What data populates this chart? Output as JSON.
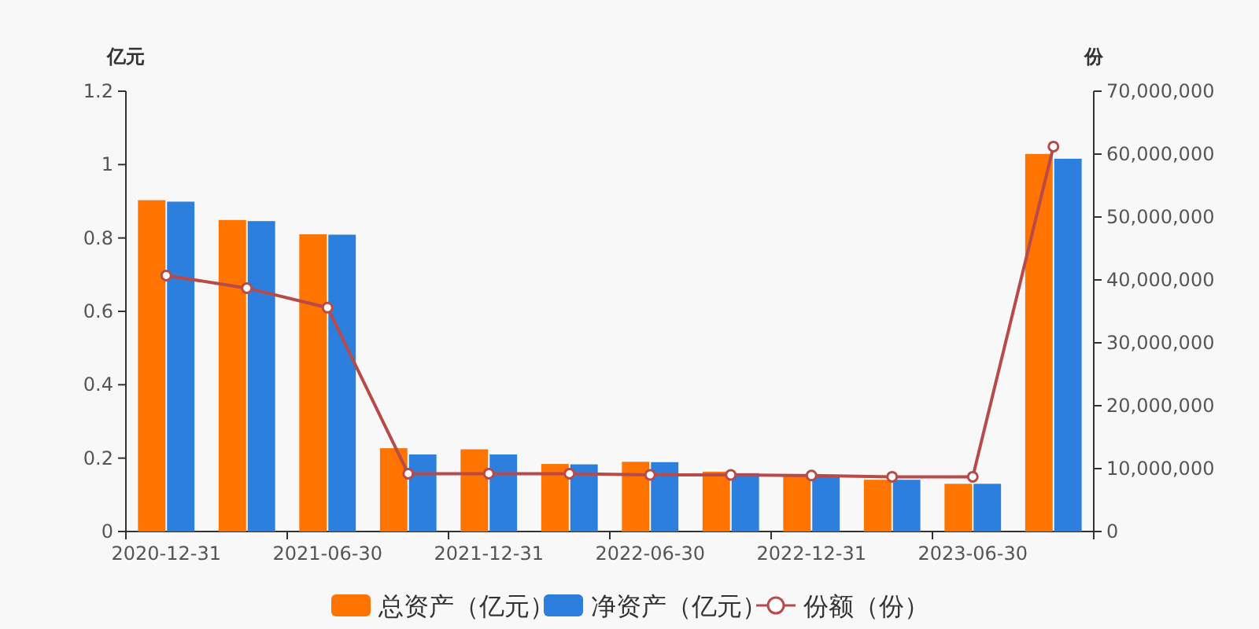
{
  "chart_data": {
    "type": "bar",
    "ylabel": "亿元",
    "y2label": "份",
    "categories": [
      "2020-12-31",
      null,
      "2021-06-30",
      null,
      "2021-12-31",
      null,
      "2022-06-30",
      null,
      "2022-12-31",
      null,
      "2023-06-30",
      null
    ],
    "series": [
      {
        "name": "总资产（亿元）",
        "color": "#ff7300",
        "values": [
          0.903,
          0.849,
          0.81,
          0.227,
          0.224,
          0.184,
          0.19,
          0.163,
          0.156,
          0.141,
          0.13,
          1.029
        ]
      },
      {
        "name": "净资产（亿元）",
        "color": "#2d7fdd",
        "values": [
          0.899,
          0.846,
          0.809,
          0.21,
          0.21,
          0.183,
          0.189,
          0.159,
          0.153,
          0.141,
          0.13,
          1.016
        ]
      },
      {
        "name": "份额（份）",
        "type": "line",
        "axis": "y2",
        "color": "#b84a4a",
        "marker": "circle",
        "values": [
          40700000,
          38700000,
          35600000,
          9200000,
          9200000,
          9200000,
          9000000,
          9000000,
          8900000,
          8700000,
          8700000,
          61200000
        ]
      }
    ],
    "ylim": [
      0,
      1.2
    ],
    "yticks": [
      0,
      0.2,
      0.4,
      0.6,
      0.8,
      1,
      1.2
    ],
    "y2lim": [
      0,
      70000000
    ],
    "y2ticks": [
      0,
      {
        "value": 10000000,
        "label": "10,000,000"
      },
      {
        "value": 20000000,
        "label": "20,000,000"
      },
      {
        "value": 30000000,
        "label": "30,000,000"
      },
      {
        "value": 40000000,
        "label": "40,000,000"
      },
      {
        "value": 50000000,
        "label": "50,000,000"
      },
      {
        "value": 60000000,
        "label": "60,000,000"
      },
      {
        "value": 70000000,
        "label": "70,000,000"
      }
    ],
    "grid": false,
    "legend": "bottom"
  }
}
